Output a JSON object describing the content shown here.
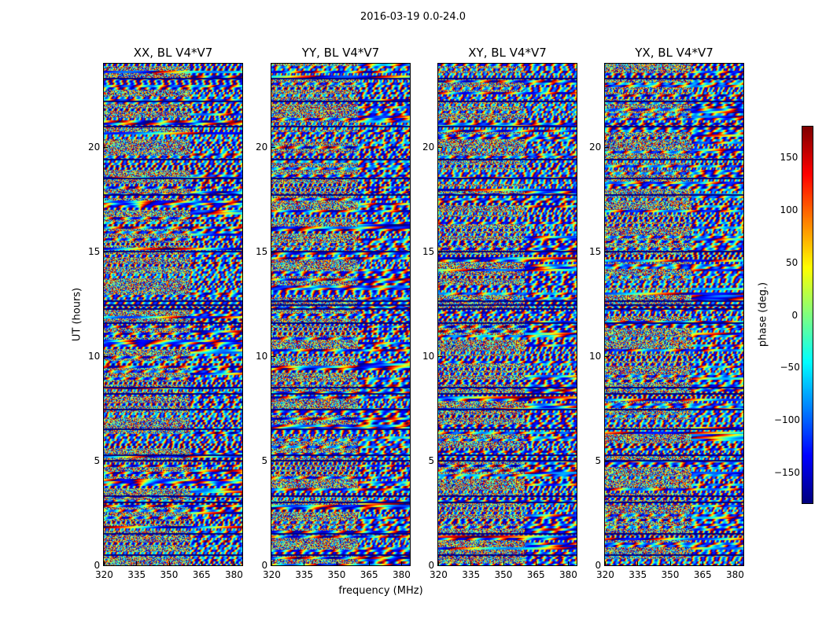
{
  "chart_data": {
    "type": "heatmap",
    "title": "2016-03-19 0.0-24.0",
    "xlabel": "frequency (MHz)",
    "ylabel": "UT (hours)",
    "colorbar_label": "phase (deg.)",
    "colormap": "jet",
    "xlim": [
      320,
      384
    ],
    "ylim": [
      0,
      24
    ],
    "clim": [
      -180,
      180
    ],
    "xticks": [
      "320",
      "335",
      "350",
      "365",
      "380"
    ],
    "yticks": [
      "0",
      "5",
      "10",
      "15",
      "20"
    ],
    "colorbar_ticks": [
      "150",
      "100",
      "50",
      "0",
      "−50",
      "−100",
      "−150"
    ],
    "colorbar_tick_values": [
      150,
      100,
      50,
      0,
      -50,
      -100,
      -150
    ],
    "panels": [
      {
        "title": "XX, BL V4*V7"
      },
      {
        "title": "YY, BL V4*V7"
      },
      {
        "title": "XY, BL V4*V7"
      },
      {
        "title": "YX, BL V4*V7"
      }
    ],
    "flagged_ut_hours": [
      0.5,
      1.5,
      3.0,
      3.3,
      5.0,
      5.25,
      6.5,
      7.45,
      8.2,
      8.5,
      11.6,
      12.25,
      12.45,
      12.65,
      15.0,
      17.7,
      18.5,
      19.4,
      21.0,
      22.2,
      23.3
    ]
  }
}
